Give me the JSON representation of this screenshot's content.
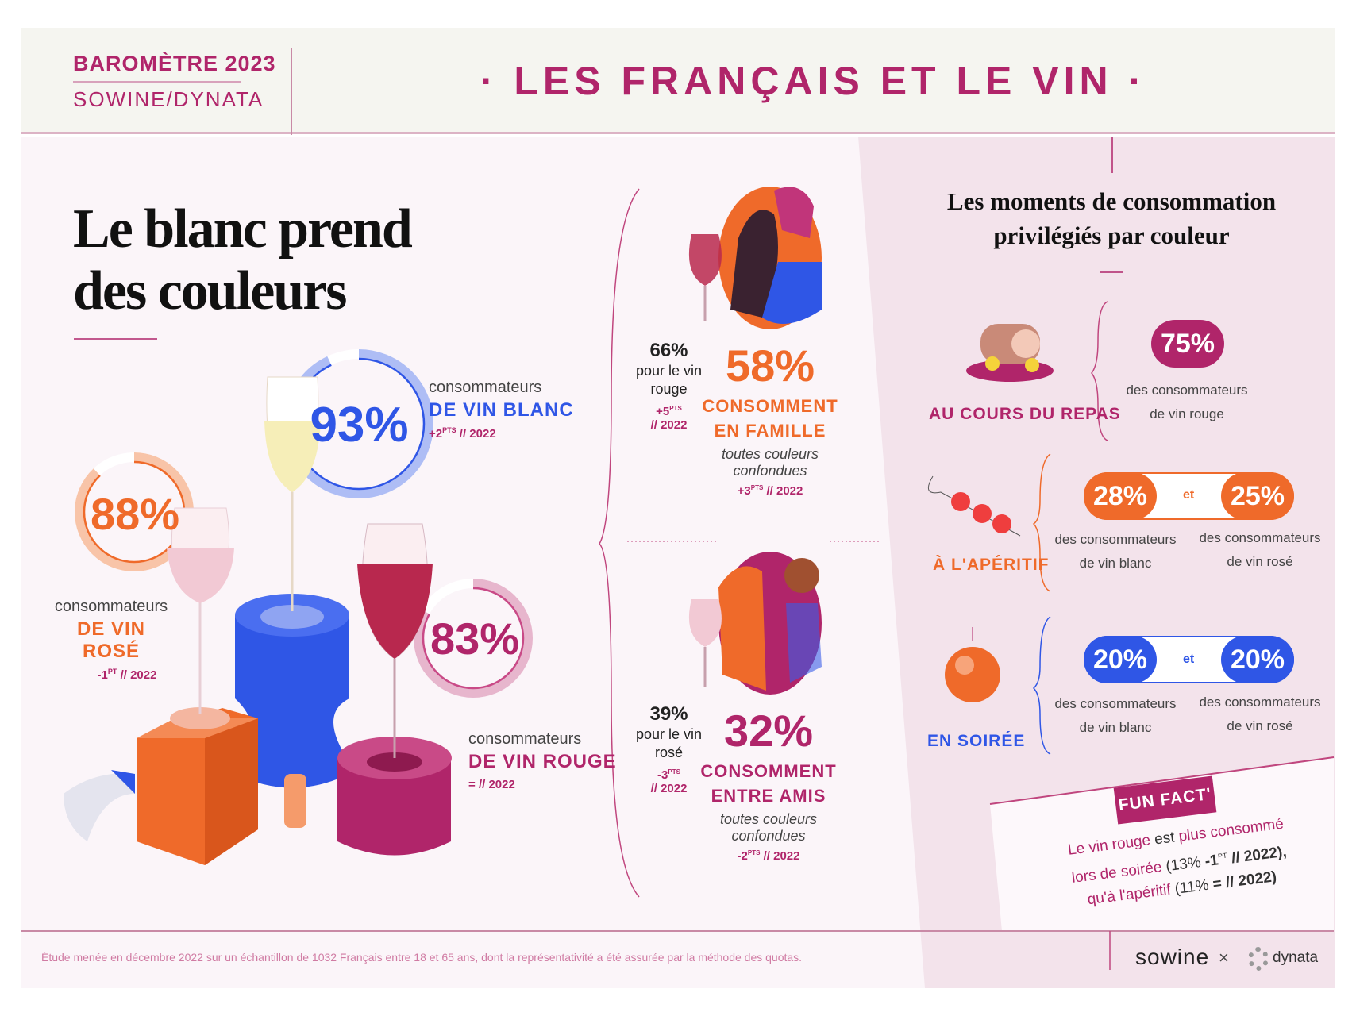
{
  "header": {
    "barometre": "BAROMÈTRE 2023",
    "sources": "SOWINE/DYNATA",
    "title": "· LES FRANÇAIS ET LE VIN ·"
  },
  "left": {
    "heading_line1": "Le blanc prend",
    "heading_line2": "des couleurs",
    "blanc": {
      "pct": "93%",
      "label1": "consommateurs",
      "label2": "DE VIN BLANC",
      "delta": "+2",
      "unit": "PTS",
      "ref": "// 2022",
      "fill_pct": 93
    },
    "rose": {
      "pct": "88%",
      "label1": "consommateurs",
      "label2": "DE VIN ROSÉ",
      "delta": "-1",
      "unit": "PT",
      "ref": "// 2022",
      "fill_pct": 88
    },
    "rouge": {
      "pct": "83%",
      "label1": "consommateurs",
      "label2": "DE VIN ROUGE",
      "delta": "=",
      "ref": "// 2022",
      "fill_pct": 83
    }
  },
  "middle": {
    "famille": {
      "side_pct": "66%",
      "side_label1": "pour le vin",
      "side_label2": "rouge",
      "side_delta": "+5",
      "side_unit": "PTS",
      "side_ref": "// 2022",
      "pct": "58%",
      "line1": "CONSOMMENT",
      "line2": "EN FAMILLE",
      "sub1": "toutes couleurs",
      "sub2": "confondues",
      "delta": "+3",
      "unit": "PTS",
      "ref": "// 2022"
    },
    "amis": {
      "side_pct": "39%",
      "side_label1": "pour le vin",
      "side_label2": "rosé",
      "side_delta": "-3",
      "side_unit": "PTS",
      "side_ref": "// 2022",
      "pct": "32%",
      "line1": "CONSOMMENT",
      "line2": "ENTRE AMIS",
      "sub1": "toutes couleurs",
      "sub2": "confondues",
      "delta": "-2",
      "unit": "PTS",
      "ref": "// 2022"
    }
  },
  "right": {
    "heading_line1": "Les moments de consommation",
    "heading_line2": "privilégiés par couleur",
    "repas": {
      "label": "AU COURS DU REPAS",
      "pct": "75%",
      "desc1": "des consommateurs",
      "desc2": "de vin rouge"
    },
    "aperitif": {
      "label": "À L'APÉRITIF",
      "pct1": "28%",
      "joiner": "et",
      "pct2": "25%",
      "desc1a": "des consommateurs",
      "desc1b": "de vin blanc",
      "desc2a": "des consommateurs",
      "desc2b": "de vin rosé"
    },
    "soiree": {
      "label": "EN SOIRÉE",
      "pct1": "20%",
      "joiner": "et",
      "pct2": "20%",
      "desc1a": "des consommateurs",
      "desc1b": "de vin blanc",
      "desc2a": "des consommateurs",
      "desc2b": "de vin rosé"
    },
    "funfact": {
      "badge": "FUN FACT'",
      "l1a": "Le vin rouge",
      "l1b": "est",
      "l1c": "plus consommé",
      "l2a": "lors de soirée",
      "l2b": "(13%",
      "l2c": "-1",
      "l2d": "PT",
      "l2e": "// 2022),",
      "l3a": "qu'à l'apéritif",
      "l3b": "(11%",
      "l3c": "= // 2022)"
    }
  },
  "footer": {
    "note": "Étude menée en décembre 2022 sur un échantillon de 1032 Français entre 18 et 65 ans, dont la représentativité a été assurée par la méthode des quotas.",
    "logo1": "sowine",
    "times": "×",
    "logo2": "dynata"
  },
  "colors": {
    "magenta": "#b0256a",
    "orange": "#ef6a2a",
    "blue": "#2f56e6",
    "pink_panel": "#f3e3eb"
  }
}
